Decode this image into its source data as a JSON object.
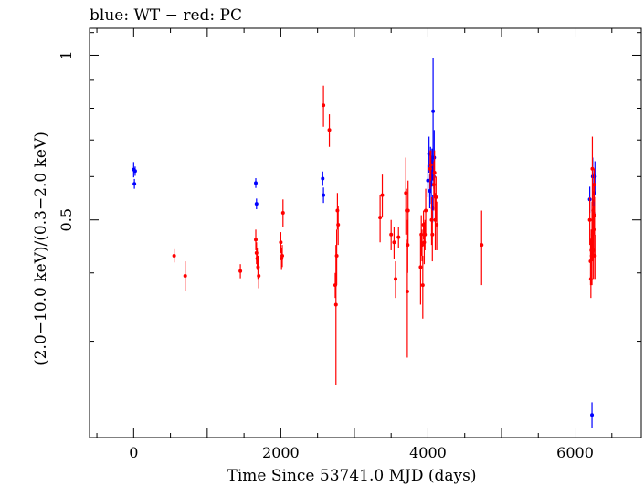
{
  "chart_data": {
    "type": "scatter",
    "title": "blue: WT − red: PC",
    "xlabel": "Time Since 53741.0 MJD (days)",
    "ylabel": "(2.0−10.0 keV)/(0.3−2.0 keV)",
    "xlim": [
      -600,
      6900
    ],
    "ylim": [
      0.2,
      1.12
    ],
    "x_ticks": [
      0,
      2000,
      4000,
      6000
    ],
    "x_tick_labels": [
      "0",
      "2000",
      "4000",
      "6000"
    ],
    "y_ticks": [
      0.5,
      1
    ],
    "y_tick_labels": [
      "0.5",
      "1"
    ],
    "y_scale": "log",
    "grid": false,
    "series": [
      {
        "color": "#0000ff",
        "points": [
          [
            0,
            0.618,
            0.02
          ],
          [
            10,
            0.582,
            0.012
          ],
          [
            20,
            0.614,
            0.012
          ],
          [
            1660,
            0.584,
            0.012
          ],
          [
            1670,
            0.535,
            0.012
          ],
          [
            2570,
            0.595,
            0.018
          ],
          [
            2580,
            0.555,
            0.018
          ],
          [
            4000,
            0.59,
            0.04
          ],
          [
            4015,
            0.66,
            0.05
          ],
          [
            4025,
            0.565,
            0.04
          ],
          [
            4035,
            0.62,
            0.06
          ],
          [
            4045,
            0.595,
            0.06
          ],
          [
            4055,
            0.625,
            0.05
          ],
          [
            4065,
            0.525,
            0.03
          ],
          [
            4070,
            0.79,
            0.2
          ],
          [
            4080,
            0.6,
            0.03
          ],
          [
            4085,
            0.65,
            0.08
          ],
          [
            6200,
            0.545,
            0.03
          ],
          [
            6230,
            0.22,
            0.012
          ],
          [
            6240,
            0.6,
            0.05
          ],
          [
            6250,
            0.515,
            0.03
          ],
          [
            6260,
            0.56,
            0.05
          ],
          [
            6270,
            0.6,
            0.04
          ]
        ]
      },
      {
        "color": "#ff0000",
        "points": [
          [
            550,
            0.43,
            0.012
          ],
          [
            700,
            0.395,
            0.025
          ],
          [
            1450,
            0.403,
            0.012
          ],
          [
            1660,
            0.46,
            0.02
          ],
          [
            1670,
            0.435,
            0.02
          ],
          [
            1680,
            0.425,
            0.02
          ],
          [
            1690,
            0.41,
            0.02
          ],
          [
            1700,
            0.395,
            0.02
          ],
          [
            2000,
            0.455,
            0.02
          ],
          [
            2010,
            0.425,
            0.02
          ],
          [
            2020,
            0.43,
            0.02
          ],
          [
            2030,
            0.515,
            0.03
          ],
          [
            2580,
            0.81,
            0.07
          ],
          [
            2660,
            0.73,
            0.05
          ],
          [
            2740,
            0.38,
            0.02
          ],
          [
            2750,
            0.35,
            0.1
          ],
          [
            2760,
            0.43,
            0.05
          ],
          [
            2770,
            0.52,
            0.04
          ],
          [
            2780,
            0.49,
            0.04
          ],
          [
            3350,
            0.505,
            0.05
          ],
          [
            3380,
            0.555,
            0.05
          ],
          [
            3500,
            0.47,
            0.03
          ],
          [
            3540,
            0.455,
            0.03
          ],
          [
            3560,
            0.39,
            0.03
          ],
          [
            3600,
            0.465,
            0.02
          ],
          [
            3700,
            0.56,
            0.09
          ],
          [
            3710,
            0.52,
            0.05
          ],
          [
            3720,
            0.37,
            0.09
          ],
          [
            3725,
            0.45,
            0.05
          ],
          [
            3730,
            0.52,
            0.07
          ],
          [
            3900,
            0.41,
            0.06
          ],
          [
            3910,
            0.47,
            0.04
          ],
          [
            3920,
            0.45,
            0.03
          ],
          [
            3930,
            0.38,
            0.05
          ],
          [
            3940,
            0.49,
            0.03
          ],
          [
            3950,
            0.455,
            0.04
          ],
          [
            3960,
            0.47,
            0.03
          ],
          [
            3970,
            0.52,
            0.05
          ],
          [
            4030,
            0.62,
            0.05
          ],
          [
            4040,
            0.63,
            0.04
          ],
          [
            4050,
            0.5,
            0.05
          ],
          [
            4060,
            0.47,
            0.05
          ],
          [
            4080,
            0.58,
            0.06
          ],
          [
            4090,
            0.61,
            0.06
          ],
          [
            4100,
            0.5,
            0.06
          ],
          [
            4110,
            0.55,
            0.05
          ],
          [
            4120,
            0.49,
            0.05
          ],
          [
            4730,
            0.45,
            0.07
          ],
          [
            6200,
            0.5,
            0.05
          ],
          [
            6210,
            0.42,
            0.04
          ],
          [
            6215,
            0.39,
            0.03
          ],
          [
            6220,
            0.44,
            0.04
          ],
          [
            6225,
            0.43,
            0.05
          ],
          [
            6230,
            0.46,
            0.08
          ],
          [
            6235,
            0.62,
            0.09
          ],
          [
            6240,
            0.47,
            0.05
          ],
          [
            6245,
            0.52,
            0.06
          ],
          [
            6250,
            0.44,
            0.05
          ],
          [
            6255,
            0.48,
            0.05
          ],
          [
            6260,
            0.58,
            0.04
          ],
          [
            6265,
            0.51,
            0.04
          ],
          [
            6270,
            0.43,
            0.04
          ]
        ]
      }
    ]
  }
}
